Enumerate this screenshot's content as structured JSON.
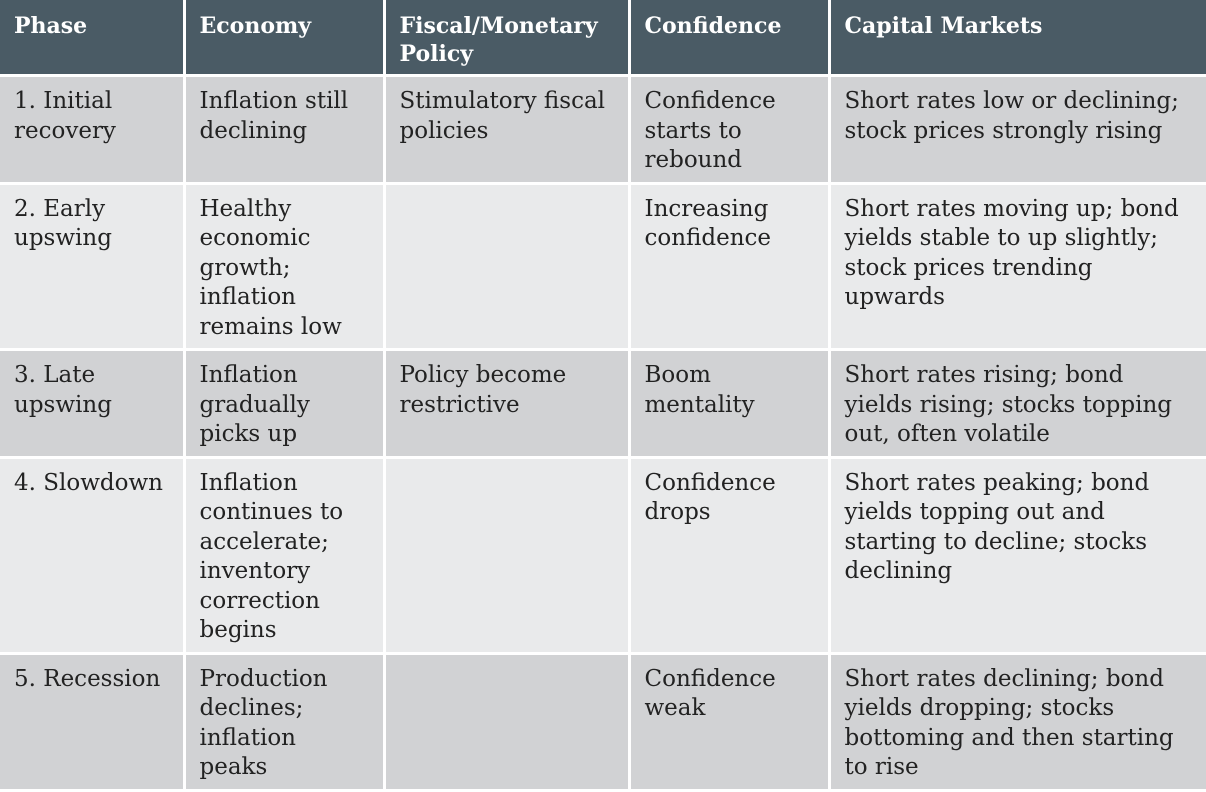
{
  "table": {
    "headers": [
      "Phase",
      "Economy",
      "Fiscal/Monetary Policy",
      "Confidence",
      "Capital Markets"
    ],
    "rows": [
      [
        "1. Initial recovery",
        "Inflation still declining",
        "Stimulatory fiscal policies",
        "Confidence starts to rebound",
        "Short rates low or declining; stock prices strongly rising"
      ],
      [
        "2. Early upswing",
        "Healthy economic growth; inflation remains low",
        "",
        "Increasing confidence",
        "Short rates moving up; bond yields stable to up slightly; stock prices trending upwards"
      ],
      [
        "3. Late upswing",
        "Inflation gradually picks up",
        "Policy become restrictive",
        "Boom mentality",
        "Short rates rising; bond yields rising; stocks topping out, often volatile"
      ],
      [
        "4. Slowdown",
        "Inflation continues to accelerate; inventory correction begins",
        "",
        "Confidence drops",
        "Short rates peaking; bond yields topping out and starting to decline; stocks declining"
      ],
      [
        "5. Recession",
        "Production declines; inflation peaks",
        "",
        "Confidence weak",
        "Short rates declining; bond yields dropping; stocks bottoming and then starting to rise"
      ]
    ]
  },
  "colors": {
    "header_bg": "#4a5b65",
    "header_text": "#ffffff",
    "row_odd_bg": "#d1d2d4",
    "row_even_bg": "#e9eaeb",
    "cell_text": "#222222"
  }
}
